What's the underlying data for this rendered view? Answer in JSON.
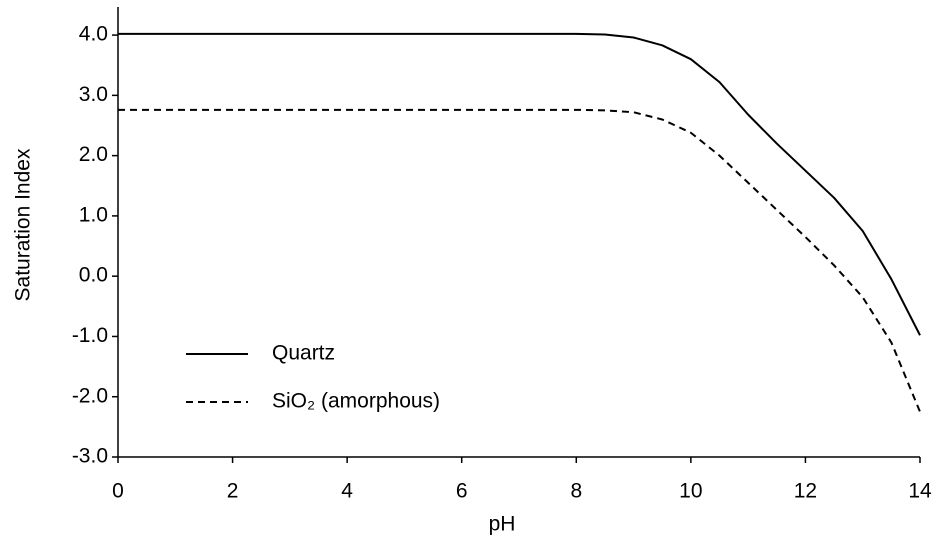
{
  "chart_data": {
    "type": "line",
    "xlabel": "pH",
    "ylabel": "Saturation Index",
    "xlim": [
      0,
      14
    ],
    "xticks": [
      0,
      2,
      4,
      6,
      8,
      10,
      12,
      14
    ],
    "ylim": [
      -3,
      4.3
    ],
    "yticks": [
      {
        "value": -3,
        "label": "-3.0"
      },
      {
        "value": -2,
        "label": "-2.0"
      },
      {
        "value": -1,
        "label": "-1.0"
      },
      {
        "value": 0,
        "label": "0.0"
      },
      {
        "value": 1,
        "label": "1.0"
      },
      {
        "value": 2,
        "label": "2.0"
      },
      {
        "value": 3,
        "label": "3.0"
      },
      {
        "value": 4,
        "label": "4.0"
      }
    ],
    "x": [
      0,
      2,
      4,
      6,
      8,
      8.5,
      9,
      9.5,
      10,
      10.5,
      11,
      11.5,
      12,
      12.5,
      13,
      13.5,
      14
    ],
    "series": [
      {
        "name": "Quartz",
        "color": "#000000",
        "linestyle": "solid",
        "values": [
          4.02,
          4.02,
          4.02,
          4.02,
          4.02,
          4.01,
          3.96,
          3.83,
          3.6,
          3.22,
          2.68,
          2.2,
          1.75,
          1.3,
          0.75,
          -0.05,
          -0.98
        ]
      },
      {
        "name": "SiO₂ (amorphous)",
        "color": "#000000",
        "linestyle": "dashed",
        "values": [
          2.76,
          2.76,
          2.76,
          2.76,
          2.76,
          2.75,
          2.72,
          2.6,
          2.38,
          2.0,
          1.55,
          1.1,
          0.65,
          0.18,
          -0.35,
          -1.1,
          -2.25
        ]
      }
    ],
    "legend": "lower left",
    "grid": false
  }
}
